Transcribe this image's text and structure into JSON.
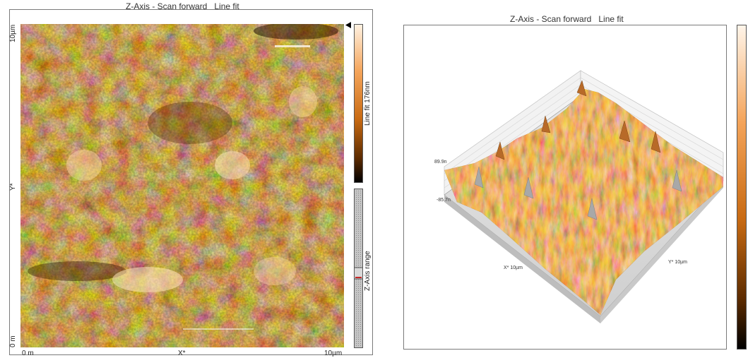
{
  "left_view": {
    "title": "Z-Axis - Scan forward   Line fit",
    "y_top_label": "10µm",
    "y_mid_label": "Y*",
    "y_bottom_label": "0 m",
    "x_left_label": "0 m",
    "x_mid_label": "X*",
    "x_right_label": "10µm",
    "colorbar_label": "Line fit 176nm",
    "range_label": "Z-Axis range"
  },
  "right_view": {
    "title": "Z-Axis - Scan forward   Line fit",
    "z_high_label": "89.9n",
    "z_low_label": "-85.7n",
    "x_axis_label": "X* 10µm",
    "y_axis_label": "Y* 10µm"
  },
  "colors": {
    "surface_dark": "#3a1a00",
    "surface_mid": "#c86a12",
    "surface_light": "#ffd9a8",
    "frame": "#7a7a7a"
  }
}
